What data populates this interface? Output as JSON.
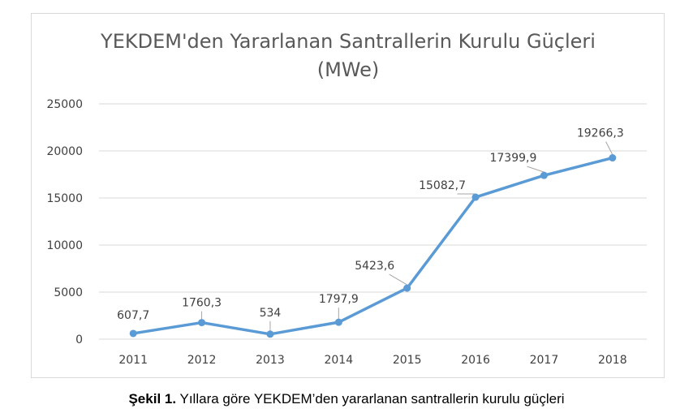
{
  "chart_data": {
    "type": "line",
    "title_line1": "YEKDEM'den Yararlanan Santrallerin Kurulu Güçleri",
    "title_line2": "(MWe)",
    "categories": [
      "2011",
      "2012",
      "2013",
      "2014",
      "2015",
      "2016",
      "2017",
      "2018"
    ],
    "values": [
      607.7,
      1760.3,
      534,
      1797.9,
      5423.6,
      15082.7,
      17399.9,
      19266.3
    ],
    "data_labels": [
      "607,7",
      "1760,3",
      "534",
      "1797,9",
      "5423,6",
      "15082,7",
      "17399,9",
      "19266,3"
    ],
    "y_ticks": [
      0,
      5000,
      10000,
      15000,
      20000,
      25000
    ],
    "ylim": [
      0,
      25000
    ],
    "grid": true,
    "legend": "none",
    "line_color": "#5b9bd5",
    "grid_color": "#d9d9d9"
  },
  "caption": {
    "label": "Şekil 1.",
    "text": " Yıllara göre YEKDEM’den yararlanan santrallerin kurulu güçleri"
  }
}
